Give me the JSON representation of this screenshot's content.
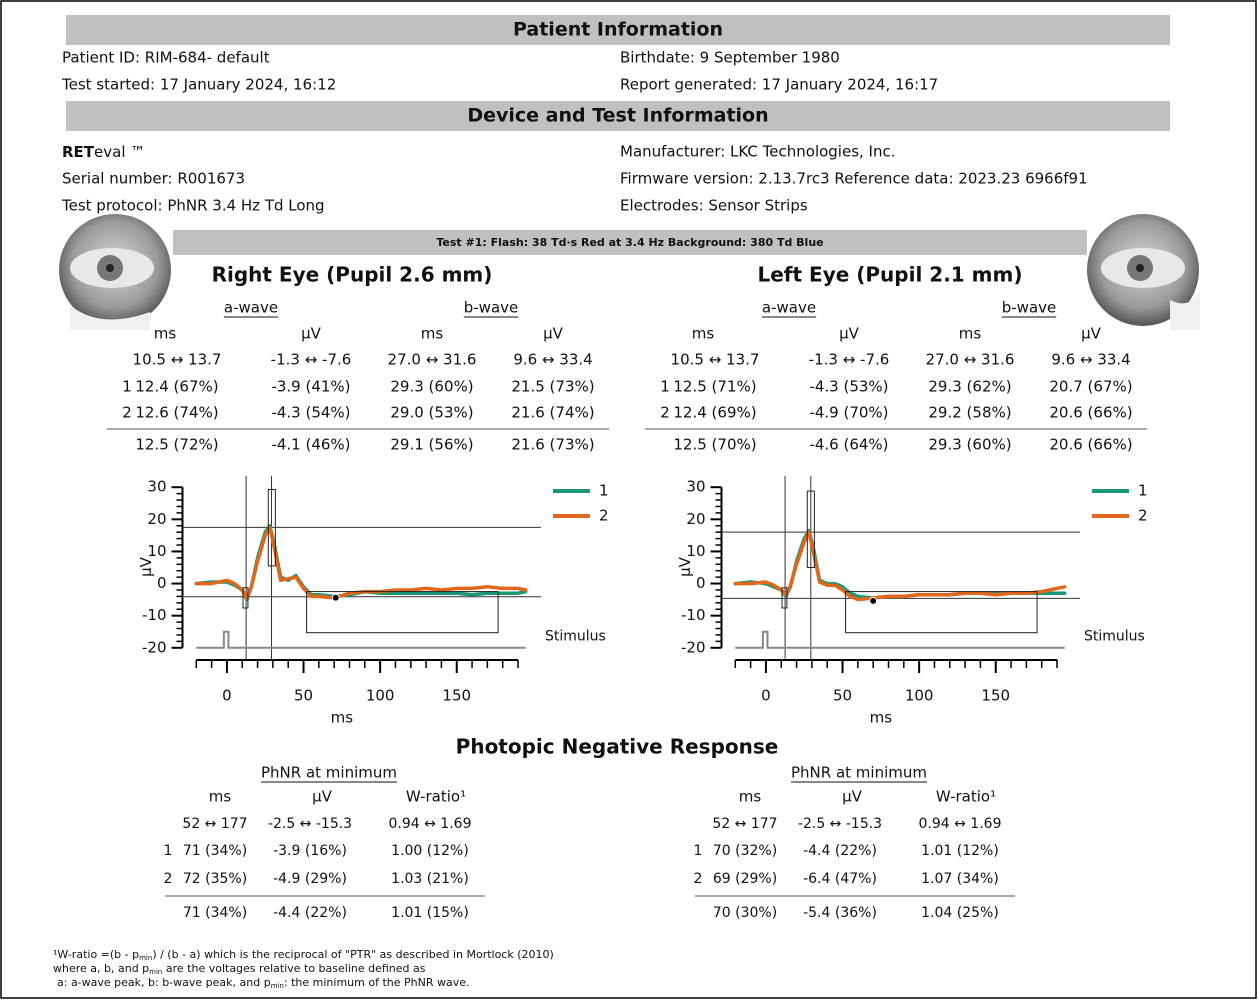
{
  "patient": {
    "title": "Patient Information",
    "id": "Patient ID: RIM-684- default",
    "birthdate": "Birthdate: 9 September 1980",
    "started": "Test started: 17 January 2024, 16:12",
    "generated": "Report generated: 17 January 2024, 16:17"
  },
  "device": {
    "title": "Device and Test Information",
    "brand_bold": "RET",
    "brand_rest": "eval ™",
    "serial": "Serial number: R001673",
    "protocol": "Test protocol: PhNR 3.4 Hz Td Long",
    "manufacturer": "Manufacturer: LKC Technologies, Inc.",
    "firmware": "Firmware version: 2.13.7rc3 Reference data: 2023.23 6966f91",
    "electrodes": "Electrodes: Sensor Strips"
  },
  "test_banner": "Test #1:  Flash: 38 Td·s Red at 3.4 Hz  Background: 380 Td Blue",
  "eyes": [
    {
      "title": "Right Eye (Pupil 2.6 mm)",
      "awave": "a-wave",
      "bwave": "b-wave",
      "units": [
        "ms",
        "µV",
        "ms",
        "µV"
      ],
      "rows": [
        {
          "cells": [
            "10.5 ↔ 13.7",
            "-1.3 ↔ -7.6",
            "27.0 ↔ 31.6",
            "9.6 ↔ 33.4"
          ]
        },
        {
          "label": "1",
          "cells": [
            "12.4 (67%)",
            "-3.9 (41%)",
            "29.3 (60%)",
            "21.5 (73%)"
          ]
        },
        {
          "label": "2",
          "cells": [
            "12.6 (74%)",
            "-4.3 (54%)",
            "29.0 (53%)",
            "21.6 (74%)"
          ]
        },
        {
          "cells": [
            "12.5 (72%)",
            "-4.1 (46%)",
            "29.1 (56%)",
            "21.6 (73%)"
          ]
        }
      ]
    },
    {
      "title": "Left Eye (Pupil 2.1 mm)",
      "awave": "a-wave",
      "bwave": "b-wave",
      "units": [
        "ms",
        "µV",
        "ms",
        "µV"
      ],
      "rows": [
        {
          "cells": [
            "10.5 ↔ 13.7",
            "-1.3 ↔ -7.6",
            "27.0 ↔ 31.6",
            "9.6 ↔ 33.4"
          ]
        },
        {
          "label": "1",
          "cells": [
            "12.5 (71%)",
            "-4.3 (53%)",
            "29.3 (62%)",
            "20.7 (67%)"
          ]
        },
        {
          "label": "2",
          "cells": [
            "12.4 (69%)",
            "-4.9 (70%)",
            "29.2 (58%)",
            "20.6 (66%)"
          ]
        },
        {
          "cells": [
            "12.5 (70%)",
            "-4.6 (64%)",
            "29.3 (60%)",
            "20.6 (66%)"
          ]
        }
      ]
    }
  ],
  "chart_data": [
    {
      "type": "line",
      "xlabel": "ms",
      "ylabel": "µV",
      "xlim": [
        -29,
        205
      ],
      "ylim": [
        -21,
        31
      ],
      "xticks": [
        0,
        50,
        100,
        150
      ],
      "yticks": [
        -20,
        -10,
        0,
        10,
        20,
        30
      ],
      "xminorticks": [
        -20,
        -10,
        10,
        20,
        30,
        40,
        60,
        70,
        80,
        90,
        110,
        120,
        130,
        140,
        160,
        170,
        180,
        190
      ],
      "yminorticks": [
        -18,
        -16,
        -14,
        -12,
        -8,
        -6,
        -4,
        -2,
        2,
        4,
        6,
        8,
        12,
        14,
        16,
        18,
        22,
        24,
        26,
        28
      ],
      "legend": "upper right",
      "x": [
        -20,
        -10,
        0,
        5,
        10,
        13,
        16,
        20,
        25,
        28,
        31,
        35,
        40,
        45,
        50,
        55,
        60,
        70,
        80,
        90,
        100,
        110,
        120,
        130,
        140,
        150,
        160,
        170,
        180,
        190,
        195
      ],
      "series": [
        {
          "name": "1",
          "color": "#1a9878",
          "values": [
            0,
            0.5,
            0.5,
            -0.5,
            -2,
            -5,
            -1,
            8,
            16,
            18,
            12,
            2,
            1,
            2.5,
            -1,
            -3.5,
            -3.5,
            -4,
            -3.5,
            -2.5,
            -3,
            -3,
            -3,
            -3,
            -3,
            -3,
            -3.5,
            -3,
            -3,
            -3,
            -2.5
          ]
        },
        {
          "name": "2",
          "color": "#e0671c",
          "values": [
            0,
            0,
            1,
            0,
            -2,
            -4.5,
            -1,
            7,
            15,
            17.5,
            11,
            1,
            1.5,
            2,
            -1.5,
            -4,
            -4,
            -4.5,
            -3,
            -2.5,
            -2.5,
            -2,
            -2,
            -1.5,
            -2,
            -1.5,
            -1.5,
            -1,
            -1.5,
            -1.5,
            -2
          ]
        }
      ],
      "vlines": [
        12.5,
        29.1
      ],
      "hlines": [
        17.5,
        -4.1
      ],
      "boxes": [
        {
          "x": [
            10.5,
            13.7
          ],
          "y": [
            -1.3,
            -7.6
          ]
        },
        {
          "x": [
            27,
            31.6
          ],
          "y": [
            5.5,
            29.3
          ]
        },
        {
          "x": [
            52,
            177
          ],
          "y": [
            -2.5,
            -15.3
          ]
        }
      ],
      "markers": [
        {
          "x": 71,
          "y": -4.4
        }
      ],
      "stimulus": {
        "label": "Stimulus",
        "color": "#888888",
        "x": [
          -20,
          -2,
          -2,
          1,
          1,
          195
        ],
        "values": [
          -20,
          -20,
          -15,
          -15,
          -20,
          -20
        ]
      }
    },
    {
      "type": "line",
      "xlabel": "ms",
      "ylabel": "µV",
      "xlim": [
        -29,
        205
      ],
      "ylim": [
        -21,
        31
      ],
      "xticks": [
        0,
        50,
        100,
        150
      ],
      "yticks": [
        -20,
        -10,
        0,
        10,
        20,
        30
      ],
      "xminorticks": [
        -20,
        -10,
        10,
        20,
        30,
        40,
        60,
        70,
        80,
        90,
        110,
        120,
        130,
        140,
        160,
        170,
        180,
        190
      ],
      "yminorticks": [
        -18,
        -16,
        -14,
        -12,
        -8,
        -6,
        -4,
        -2,
        2,
        4,
        6,
        8,
        12,
        14,
        16,
        18,
        22,
        24,
        26,
        28
      ],
      "legend": "upper right",
      "x": [
        -20,
        -10,
        0,
        5,
        10,
        13,
        16,
        20,
        25,
        28,
        31,
        35,
        40,
        45,
        50,
        55,
        60,
        70,
        80,
        90,
        100,
        110,
        120,
        130,
        140,
        150,
        160,
        170,
        180,
        190,
        195
      ],
      "series": [
        {
          "name": "1",
          "color": "#1a9878",
          "values": [
            0,
            0.5,
            0,
            -1,
            -2,
            -4,
            -1,
            7,
            14,
            16.5,
            11,
            1,
            0,
            0,
            -1,
            -3,
            -4,
            -4.5,
            -4,
            -4,
            -3.5,
            -3.5,
            -3.5,
            -3,
            -3,
            -3,
            -3,
            -3,
            -3,
            -3,
            -3
          ]
        },
        {
          "name": "2",
          "color": "#e0671c",
          "values": [
            0,
            0,
            0.5,
            -0.5,
            -2,
            -3.5,
            -0.5,
            6,
            13,
            16,
            10,
            0.5,
            -0.5,
            -0.5,
            -2,
            -4,
            -5,
            -4.5,
            -4,
            -4,
            -3.5,
            -3.5,
            -3.5,
            -3,
            -3,
            -3.5,
            -3,
            -3,
            -2.5,
            -1.5,
            -1
          ]
        }
      ],
      "vlines": [
        12.5,
        29.3
      ],
      "hlines": [
        16,
        -4.6
      ],
      "boxes": [
        {
          "x": [
            10.5,
            13.7
          ],
          "y": [
            -1.3,
            -7.6
          ]
        },
        {
          "x": [
            27,
            31.6
          ],
          "y": [
            5,
            28.8
          ]
        },
        {
          "x": [
            52,
            177
          ],
          "y": [
            -2.5,
            -15.3
          ]
        }
      ],
      "markers": [
        {
          "x": 70,
          "y": -5.4
        }
      ],
      "stimulus": {
        "label": "Stimulus",
        "color": "#888888",
        "x": [
          -20,
          -2,
          -2,
          1,
          1,
          195
        ],
        "values": [
          -20,
          -20,
          -15,
          -15,
          -20,
          -20
        ]
      }
    }
  ],
  "phnr": {
    "title": "Photopic Negative Response",
    "eyes": [
      {
        "heading": "PhNR at minimum",
        "units": [
          "ms",
          "µV",
          "W-ratio¹"
        ],
        "rows": [
          {
            "cells": [
              "52 ↔ 177",
              "-2.5 ↔ -15.3",
              "0.94 ↔ 1.69"
            ]
          },
          {
            "label": "1",
            "cells": [
              "71 (34%)",
              "-3.9 (16%)",
              "1.00 (12%)"
            ]
          },
          {
            "label": "2",
            "cells": [
              "72 (35%)",
              "-4.9 (29%)",
              "1.03 (21%)"
            ]
          },
          {
            "cells": [
              "71 (34%)",
              "-4.4 (22%)",
              "1.01 (15%)"
            ]
          }
        ]
      },
      {
        "heading": "PhNR at minimum",
        "units": [
          "ms",
          "µV",
          "W-ratio¹"
        ],
        "rows": [
          {
            "cells": [
              "52 ↔ 177",
              "-2.5 ↔ -15.3",
              "0.94 ↔ 1.69"
            ]
          },
          {
            "label": "1",
            "cells": [
              "70 (32%)",
              "-4.4 (22%)",
              "1.01 (12%)"
            ]
          },
          {
            "label": "2",
            "cells": [
              "69 (29%)",
              "-6.4 (47%)",
              "1.07 (34%)"
            ]
          },
          {
            "cells": [
              "70 (30%)",
              "-5.4 (36%)",
              "1.04 (25%)"
            ]
          }
        ]
      }
    ]
  },
  "footnote": [
    [
      "¹W-ratio =(b - p",
      "min",
      ") / (b - a) which is the reciprocal of \"PTR\" as described in Mortlock (2010)"
    ],
    [
      "where a, b, and p",
      "min",
      " are the voltages relative to baseline defined as"
    ],
    [
      "a: a-wave peak, b: b-wave peak, and p",
      "min",
      ": the minimum of the PhNR wave."
    ]
  ]
}
